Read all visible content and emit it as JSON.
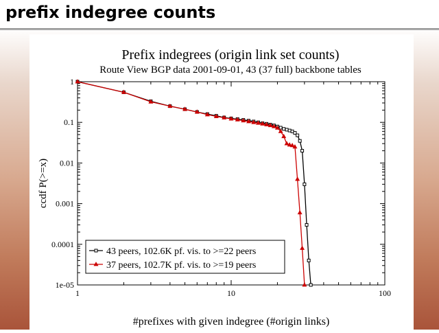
{
  "slide": {
    "title": "prefix indegree counts"
  },
  "chart_data": {
    "type": "line",
    "title": "Prefix indegrees (origin link set counts)",
    "subtitle": "Route View BGP data 2001-09-01, 43 (37 full) backbone tables",
    "xlabel": "#prefixes with given indegree (#origin links)",
    "ylabel": "ccdf P(>=x)",
    "xscale": "log",
    "yscale": "log",
    "xlim": [
      1,
      100
    ],
    "ylim": [
      1e-05,
      1
    ],
    "x_ticks": [
      "1",
      "10",
      "100"
    ],
    "y_ticks": [
      "1",
      "0.1",
      "0.01",
      "0.001",
      "0.0001",
      "1e-05"
    ],
    "legend_position": "bottom-left",
    "series": [
      {
        "name": "43 peers, 102.6K pf. vis. to >=22 peers",
        "color": "#000000",
        "marker": "square",
        "x": [
          1,
          2,
          3,
          4,
          5,
          6,
          7,
          8,
          9,
          10,
          11,
          12,
          13,
          14,
          15,
          16,
          17,
          18,
          19,
          20,
          21,
          22,
          23,
          24,
          25,
          26,
          27,
          28,
          29,
          30,
          31,
          32,
          33
        ],
        "y": [
          1,
          0.55,
          0.33,
          0.25,
          0.21,
          0.18,
          0.16,
          0.145,
          0.132,
          0.125,
          0.12,
          0.115,
          0.11,
          0.105,
          0.1,
          0.095,
          0.092,
          0.088,
          0.084,
          0.079,
          0.074,
          0.069,
          0.066,
          0.063,
          0.06,
          0.055,
          0.048,
          0.035,
          0.02,
          0.003,
          0.0003,
          4e-05,
          1e-05
        ]
      },
      {
        "name": "37 peers, 102.7K pf. vis. to >=19 peers",
        "color": "#cc0000",
        "marker": "triangle",
        "x": [
          1,
          2,
          3,
          4,
          5,
          6,
          7,
          8,
          9,
          10,
          11,
          12,
          13,
          14,
          15,
          16,
          17,
          18,
          19,
          20,
          21,
          22,
          23,
          24,
          25,
          26,
          27,
          28,
          29,
          30
        ],
        "y": [
          1,
          0.55,
          0.32,
          0.25,
          0.21,
          0.18,
          0.155,
          0.14,
          0.13,
          0.122,
          0.116,
          0.11,
          0.105,
          0.1,
          0.096,
          0.092,
          0.088,
          0.084,
          0.079,
          0.073,
          0.06,
          0.045,
          0.03,
          0.028,
          0.027,
          0.025,
          0.004,
          0.0006,
          8e-05,
          1e-05
        ]
      }
    ]
  }
}
